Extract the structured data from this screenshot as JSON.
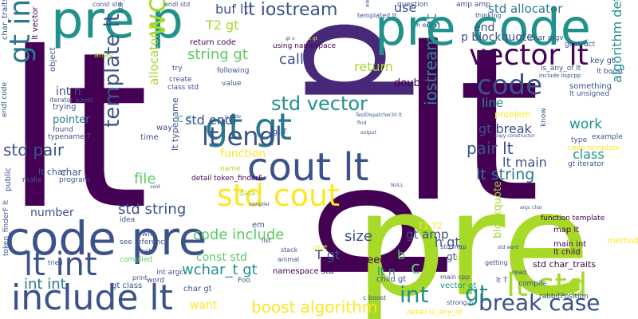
{
  "colors": {
    "background": "#ffffff",
    "palette": [
      "#440154",
      "#3b528b",
      "#21918c",
      "#5ec962",
      "#a6d928",
      "#fde725",
      "#482878",
      "#2a788e"
    ]
  },
  "words": [
    {
      "id": "lt-1",
      "text": "lt",
      "color": "#440154"
    },
    {
      "id": "lt-2",
      "text": "lt",
      "color": "#440154"
    },
    {
      "id": "p-1",
      "text": "p",
      "color": "#440154"
    },
    {
      "id": "p-2",
      "text": "p",
      "color": "#482878"
    },
    {
      "id": "pre-1",
      "text": "pre",
      "color": "#a6d928"
    },
    {
      "id": "pre-p",
      "text": "pre p",
      "color": "#21918c"
    },
    {
      "id": "pre-code",
      "text": "pre code",
      "color": "#21918c"
    },
    {
      "id": "code-pre",
      "text": "code pre",
      "color": "#3b528b"
    },
    {
      "id": "cout-lt",
      "text": "cout lt",
      "color": "#3b528b"
    },
    {
      "id": "include-lt",
      "text": "include lt",
      "color": "#3b528b"
    },
    {
      "id": "gt-include",
      "text": "gt include",
      "color": "#2a788e"
    },
    {
      "id": "gt-gt",
      "text": "gt gt",
      "color": "#2a788e"
    },
    {
      "id": "lt-endl",
      "text": "lt endl",
      "color": "#3b528b"
    },
    {
      "id": "lt-int",
      "text": "lt int",
      "color": "#3b528b"
    },
    {
      "id": "lt-std",
      "text": "lt std",
      "color": "#a6d928"
    },
    {
      "id": "std-cout",
      "text": "std cout",
      "color": "#fde725"
    },
    {
      "id": "vector-lt",
      "text": "vector lt",
      "color": "#440154"
    },
    {
      "id": "code",
      "text": "code",
      "color": "#3b528b"
    },
    {
      "id": "lt-iostream",
      "text": "lt iostream",
      "color": "#3b528b"
    },
    {
      "id": "std-allocator",
      "text": "std allocator",
      "color": "#2a788e"
    },
    {
      "id": "wchar-t",
      "text": "wchar_t",
      "color": "#a6d928"
    },
    {
      "id": "template-lt",
      "text": "template lt",
      "color": "#3b528b"
    },
    {
      "id": "std-vector",
      "text": "std vector",
      "color": "#21918c"
    },
    {
      "id": "break-case",
      "text": "break case",
      "color": "#3b528b"
    },
    {
      "id": "boost-algorithm",
      "text": "boost algorithm",
      "color": "#fde725"
    },
    {
      "id": "int-int",
      "text": "int int",
      "color": "#2a788e"
    },
    {
      "id": "std-string",
      "text": "std string",
      "color": "#3b528b"
    },
    {
      "id": "code-include",
      "text": "code include",
      "color": "#5ec962"
    },
    {
      "id": "wchar-t-gt",
      "text": "wchar_t gt",
      "color": "#21918c"
    },
    {
      "id": "iostream-gt",
      "text": "iostream gt",
      "color": "#21918c"
    },
    {
      "id": "std-pair",
      "text": "std pair",
      "color": "#3b528b"
    },
    {
      "id": "pair-lt",
      "text": "pair lt",
      "color": "#3b528b"
    },
    {
      "id": "lt-string",
      "text": "lt string",
      "color": "#2a788e"
    },
    {
      "id": "lt-main",
      "text": "lt main",
      "color": "#3b528b"
    },
    {
      "id": "gt-break",
      "text": "gt break",
      "color": "#3b528b"
    },
    {
      "id": "std-endl",
      "text": "std endl",
      "color": "#3b528b"
    },
    {
      "id": "string-gt",
      "text": "string gt",
      "color": "#5ec962"
    },
    {
      "id": "buf-lt",
      "text": "buf lt",
      "color": "#3b528b"
    },
    {
      "id": "t2-gt",
      "text": "T2 gt",
      "color": "#a6d928"
    },
    {
      "id": "call",
      "text": "call",
      "color": "#3b528b"
    },
    {
      "id": "return",
      "text": "return",
      "color": "#a6d928"
    },
    {
      "id": "use",
      "text": "use",
      "color": "#3b528b"
    },
    {
      "id": "end",
      "text": "end",
      "color": "#3b528b"
    },
    {
      "id": "p-blockquote",
      "text": "p blockquote",
      "color": "#3b528b"
    },
    {
      "id": "line",
      "text": "line",
      "color": "#21918c"
    },
    {
      "id": "work",
      "text": "work",
      "color": "#21918c"
    },
    {
      "id": "class",
      "text": "class",
      "color": "#21918c"
    },
    {
      "id": "algorithm-detail",
      "text": "algorithm detail",
      "color": "#21918c"
    },
    {
      "id": "allocator-lt",
      "text": "allocator lt",
      "color": "#a6d928"
    },
    {
      "id": "function",
      "text": "function",
      "color": "#fde725"
    },
    {
      "id": "file",
      "text": "file",
      "color": "#5ec962"
    },
    {
      "id": "number",
      "text": "number",
      "color": "#3b528b"
    },
    {
      "id": "size",
      "text": "size",
      "color": "#3b528b"
    },
    {
      "id": "gt-amp",
      "text": "gt amp",
      "color": "#3b528b"
    },
    {
      "id": "int",
      "text": "int",
      "color": "#21918c"
    },
    {
      "id": "gt-2",
      "text": "gt",
      "color": "#21918c"
    },
    {
      "id": "c",
      "text": "c",
      "color": "#5ec962"
    },
    {
      "id": "h-gt",
      "text": "h gt",
      "color": "#3b528b"
    },
    {
      "id": "lt-t",
      "text": "lt T",
      "color": "#3b528b"
    },
    {
      "id": "const-std",
      "text": "const std",
      "color": "#5ec962"
    },
    {
      "id": "want",
      "text": "want",
      "color": "#fde725"
    },
    {
      "id": "std-char-traits",
      "text": "std char_traits",
      "color": "#440154"
    },
    {
      "id": "int-n",
      "text": "int n",
      "color": "#3b528b"
    },
    {
      "id": "pointer",
      "text": "pointer",
      "color": "#2a788e"
    },
    {
      "id": "double",
      "text": "double",
      "color": "#440154"
    },
    {
      "id": "need",
      "text": "need",
      "color": "#440154"
    },
    {
      "id": "main-int",
      "text": "main int",
      "color": "#440154"
    },
    {
      "id": "lt-child",
      "text": "lt child",
      "color": "#440154"
    },
    {
      "id": "lt-n",
      "text": "lt n",
      "color": "#21918c"
    },
    {
      "id": "namespace-std",
      "text": "namespace std",
      "color": "#440154"
    },
    {
      "id": "return-code",
      "text": "return code",
      "color": "#440154"
    },
    {
      "id": "using-namespace",
      "text": "using namespace",
      "color": "#440154"
    },
    {
      "id": "lt-vector",
      "text": "lt vector",
      "color": "#440154"
    },
    {
      "id": "char-traits-lt",
      "text": "char_traits lt",
      "color": "#3b528b"
    },
    {
      "id": "object",
      "text": "object",
      "color": "#3b528b"
    },
    {
      "id": "trying",
      "text": "trying",
      "color": "#3b528b"
    },
    {
      "id": "typename-t",
      "text": "typename T",
      "color": "#3b528b"
    },
    {
      "id": "found",
      "text": "found",
      "color": "#3b528b"
    },
    {
      "id": "time",
      "text": "time",
      "color": "#3b528b"
    },
    {
      "id": "way",
      "text": "way",
      "color": "#3b528b"
    },
    {
      "id": "c-c",
      "text": "C C",
      "color": "#21918c"
    },
    {
      "id": "lt-typename",
      "text": "lt typename",
      "color": "#3b528b"
    },
    {
      "id": "public",
      "text": "public",
      "color": "#3b528b"
    },
    {
      "id": "make",
      "text": "make",
      "color": "#3b528b"
    },
    {
      "id": "char",
      "text": "char",
      "color": "#3b528b"
    },
    {
      "id": "program",
      "text": "program",
      "color": "#3b528b"
    },
    {
      "id": "idea",
      "text": "idea",
      "color": "#3b528b"
    },
    {
      "id": "see-reference",
      "text": "see reference",
      "color": "#3b528b"
    },
    {
      "id": "will",
      "text": "will",
      "color": "#3b528b"
    },
    {
      "id": "set",
      "text": "set",
      "color": "#3b528b"
    },
    {
      "id": "compiled",
      "text": "compiled",
      "color": "#5ec962"
    },
    {
      "id": "word",
      "text": "word",
      "color": "#3b528b"
    },
    {
      "id": "gt-class",
      "text": "gt class",
      "color": "#3b528b"
    },
    {
      "id": "char-gt",
      "text": "char gt",
      "color": "#3b528b"
    },
    {
      "id": "create",
      "text": "create",
      "color": "#3b528b"
    },
    {
      "id": "class-std",
      "text": "class std",
      "color": "#3b528b"
    },
    {
      "id": "value",
      "text": "value",
      "color": "#3b528b"
    },
    {
      "id": "following",
      "text": "following",
      "color": "#3b528b"
    },
    {
      "id": "try",
      "text": "try",
      "color": "#3b528b"
    },
    {
      "id": "key-gt",
      "text": "key gt",
      "color": "#3b528b"
    },
    {
      "id": "lt-boost",
      "text": "lt boost",
      "color": "#3b528b"
    },
    {
      "id": "something",
      "text": "something",
      "color": "#3b528b"
    },
    {
      "id": "lt-unsigned",
      "text": "lt unsigned",
      "color": "#3b528b"
    },
    {
      "id": "is-any-of-lt",
      "text": "is_any_of lt",
      "color": "#3b528b"
    },
    {
      "id": "know",
      "text": "know",
      "color": "#3b528b"
    },
    {
      "id": "problem",
      "text": "problem",
      "color": "#fde725"
    },
    {
      "id": "type",
      "text": "type",
      "color": "#3b528b"
    },
    {
      "id": "example",
      "text": "example",
      "color": "#3b528b"
    },
    {
      "id": "code-template",
      "text": "code template",
      "color": "#fde725"
    },
    {
      "id": "gt-iterator",
      "text": "gt iterator",
      "color": "#3b528b"
    },
    {
      "id": "lt-t2",
      "text": "T1 T2",
      "color": "#fde725"
    },
    {
      "id": "map-lt",
      "text": "map lt",
      "color": "#440154"
    },
    {
      "id": "method",
      "text": "method",
      "color": "#fde725"
    },
    {
      "id": "detail-token-finderf",
      "text": "detail token_finderF",
      "color": "#440154"
    },
    {
      "id": "token-finderf-lt",
      "text": "token_finderF lt",
      "color": "#3b528b"
    },
    {
      "id": "foo",
      "text": "Foo",
      "color": "#3b528b"
    },
    {
      "id": "vector-gt",
      "text": "vector gt",
      "color": "#21918c"
    },
    {
      "id": "compile",
      "text": "compile",
      "color": "#3b528b"
    },
    {
      "id": "child-gt",
      "text": "child gt",
      "color": "#3b528b"
    },
    {
      "id": "detail-is-any-of",
      "text": "detail is_any_of",
      "color": "#fde725"
    },
    {
      "id": "function-template",
      "text": "function template",
      "color": "#440154"
    },
    {
      "id": "name",
      "text": "name",
      "color": "#a6d928"
    },
    {
      "id": "data",
      "text": "data",
      "color": "#a6d928"
    },
    {
      "id": "p-strong",
      "text": "p strong",
      "color": "#440154"
    },
    {
      "id": "gt-t",
      "text": "gt T",
      "color": "#3b528b"
    },
    {
      "id": "lt-char",
      "text": "lt char",
      "color": "#3b528b"
    },
    {
      "id": "t-gt",
      "text": "T gt",
      "color": "#3b528b"
    },
    {
      "id": "int-arg",
      "text": "int argc",
      "color": "#3b528b"
    },
    {
      "id": "em",
      "text": "em",
      "color": "#3b528b"
    },
    {
      "id": "amp-amp",
      "text": "amp amp",
      "color": "#3b528b"
    },
    {
      "id": "question",
      "text": "question",
      "color": "#3b528b"
    },
    {
      "id": "char-argv",
      "text": "char argv",
      "color": "#3b528b"
    },
    {
      "id": "gt-struct",
      "text": "gt struct",
      "color": "#3b528b"
    },
    {
      "id": "std-string-iterator",
      "text": "std _String_iterator",
      "color": "#3b528b"
    },
    {
      "id": "thinking",
      "text": "thinking",
      "color": "#3b528b"
    },
    {
      "id": "endl-std",
      "text": "endl std",
      "color": "#3b528b"
    },
    {
      "id": "const-std-small",
      "text": "const std",
      "color": "#3b528b"
    },
    {
      "id": "iterator-boost",
      "text": "iterator boost",
      "color": "#3b528b"
    },
    {
      "id": "rabbit-position",
      "text": "rabbitPosition",
      "color": "#3b528b"
    },
    {
      "id": "endl-code",
      "text": "endl code",
      "color": "#3b528b"
    },
    {
      "id": "array",
      "text": "array",
      "color": "#a6d928"
    },
    {
      "id": "include-lispcpp",
      "text": "include lispcpp",
      "color": "#3b528b"
    },
    {
      "id": "h-error",
      "text": "h error",
      "color": "#3b528b"
    },
    {
      "id": "templated-lt",
      "text": "templated lt",
      "color": "#3b528b"
    },
    {
      "id": "getting",
      "text": "getting",
      "color": "#3b528b"
    },
    {
      "id": "read",
      "text": "read",
      "color": "#3b528b"
    },
    {
      "id": "test",
      "text": "test",
      "color": "#a6d928"
    },
    {
      "id": "main-cpp",
      "text": "main cpp",
      "color": "#3b528b"
    },
    {
      "id": "animal",
      "text": "animal",
      "color": "#3b528b"
    },
    {
      "id": "stack",
      "text": "stack",
      "color": "#3b528b"
    },
    {
      "id": "list",
      "text": "list",
      "color": "#3b528b"
    },
    {
      "id": "strong-p",
      "text": "strong p",
      "color": "#3b528b"
    },
    {
      "id": "c-boost",
      "text": "c boost",
      "color": "#3b528b"
    },
    {
      "id": "print",
      "text": "print",
      "color": "#3b528b"
    },
    {
      "id": "tried",
      "text": "tried",
      "color": "#3b528b"
    },
    {
      "id": "one",
      "text": "one",
      "color": "#fde725"
    },
    {
      "id": "b-gt",
      "text": "b",
      "color": "#5ec962"
    },
    {
      "id": "gt-1",
      "text": "gt",
      "color": "#3b528b"
    },
    {
      "id": "blockquote",
      "text": "blockquote",
      "color": "#a6d928"
    },
    {
      "id": "std-map",
      "text": "std map",
      "color": "#3b528b"
    },
    {
      "id": "element",
      "text": "element",
      "color": "#3b528b"
    },
    {
      "id": "copy-constructor",
      "text": "copy constructor",
      "color": "#3b528b"
    },
    {
      "id": "find",
      "text": "find",
      "color": "#3b528b"
    },
    {
      "id": "output",
      "text": "output",
      "color": "#3b528b"
    },
    {
      "id": "null",
      "text": "NULL",
      "color": "#3b528b"
    },
    {
      "id": "compiler",
      "text": "compiler",
      "color": "#3b528b"
    },
    {
      "id": "testdispatcher",
      "text": "TestDispatcher20 lt",
      "color": "#3b528b"
    },
    {
      "id": "p-code",
      "text": "p code",
      "color": "#3b528b"
    },
    {
      "id": "gt-x",
      "text": "gt x",
      "color": "#3b528b"
    },
    {
      "id": "lt-gt",
      "text": "lt gt",
      "color": "#fde725"
    },
    {
      "id": "void",
      "text": "void",
      "color": "#3b528b"
    },
    {
      "id": "std-word",
      "text": "std word",
      "color": "#3b528b"
    },
    {
      "id": "argc-char",
      "text": "argc char",
      "color": "#3b528b"
    }
  ]
}
